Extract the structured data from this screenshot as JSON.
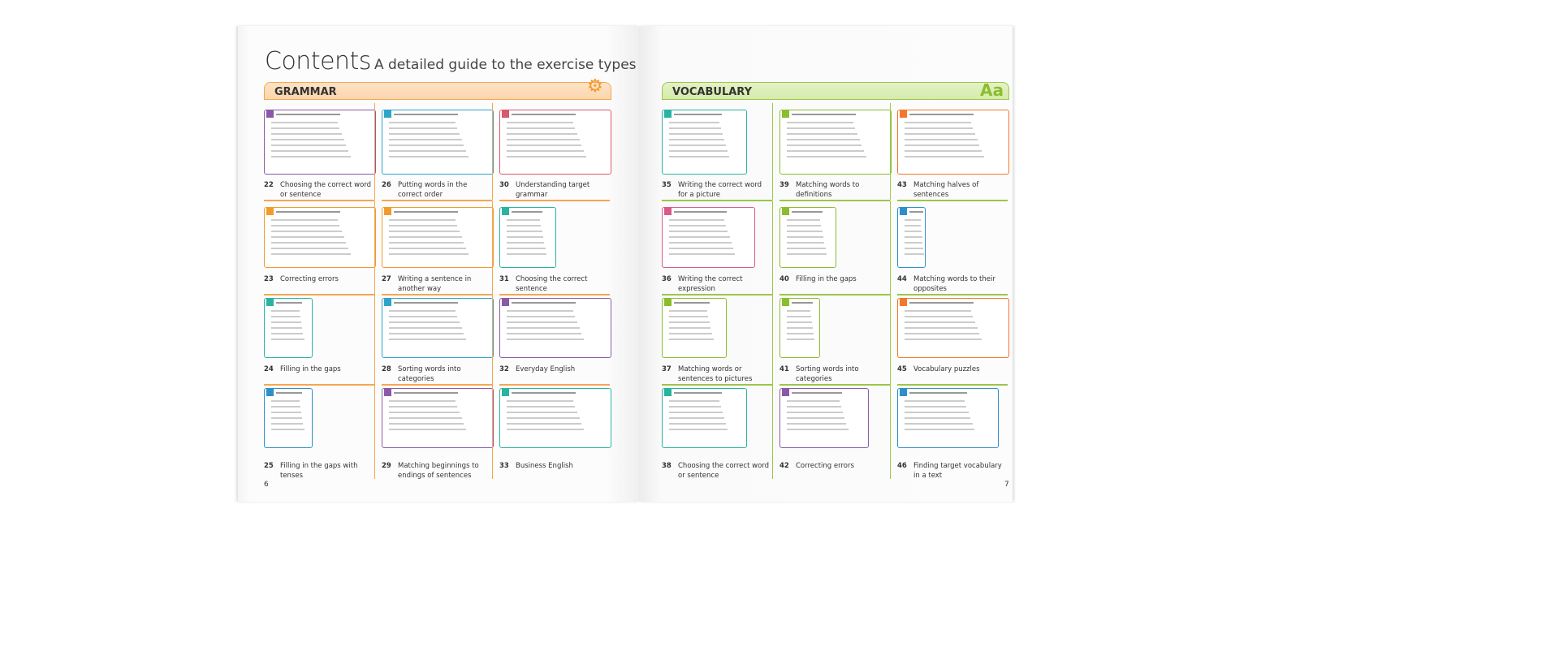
{
  "header": {
    "title": "Contents",
    "subtitle": "A detailed guide to the exercise types"
  },
  "sections": {
    "grammar": {
      "label": "GRAMMAR",
      "color": "#f4a653",
      "icon": "gears-icon"
    },
    "vocabulary": {
      "label": "VOCABULARY",
      "color": "#9cc64a",
      "icon": "Aa"
    }
  },
  "page_numbers": {
    "left": "6",
    "right": "7"
  },
  "grammar_items": [
    {
      "num": "22",
      "label": "Choosing the correct word or sentence",
      "color": "#8a5aa8"
    },
    {
      "num": "26",
      "label": "Putting words in the correct order",
      "color": "#2fa3c9"
    },
    {
      "num": "30",
      "label": "Understanding target grammar",
      "color": "#d95a6a"
    },
    {
      "num": "23",
      "label": "Correcting errors",
      "color": "#f39a2c"
    },
    {
      "num": "27",
      "label": "Writing a sentence in another way",
      "color": "#f39a2c"
    },
    {
      "num": "31",
      "label": "Choosing the correct sentence",
      "color": "#2ab3a0"
    },
    {
      "num": "24",
      "label": "Filling in the gaps",
      "color": "#2ab3a0"
    },
    {
      "num": "28",
      "label": "Sorting words into categories",
      "color": "#2fa3c9"
    },
    {
      "num": "32",
      "label": "Everyday English",
      "color": "#8a5aa8"
    },
    {
      "num": "25",
      "label": "Filling in the gaps with tenses",
      "color": "#2f8fc9"
    },
    {
      "num": "29",
      "label": "Matching beginnings to endings of sentences",
      "color": "#8a5aa8"
    },
    {
      "num": "33",
      "label": "Business English",
      "color": "#2ab3a0"
    }
  ],
  "vocabulary_items": [
    {
      "num": "35",
      "label": "Writing the correct word for a picture",
      "color": "#2ab3a0"
    },
    {
      "num": "39",
      "label": "Matching words to definitions",
      "color": "#8cbd2e"
    },
    {
      "num": "43",
      "label": "Matching halves of sentences",
      "color": "#f3772c"
    },
    {
      "num": "36",
      "label": "Writing the correct expression",
      "color": "#d95a8a"
    },
    {
      "num": "40",
      "label": "Filling in the gaps",
      "color": "#8cbd2e"
    },
    {
      "num": "44",
      "label": "Matching words to their opposites",
      "color": "#2f8fc9"
    },
    {
      "num": "37",
      "label": "Matching words or sentences to pictures",
      "color": "#8cbd2e"
    },
    {
      "num": "41",
      "label": "Sorting words into categories",
      "color": "#8cbd2e"
    },
    {
      "num": "45",
      "label": "Vocabulary puzzles",
      "color": "#f3772c"
    },
    {
      "num": "38",
      "label": "Choosing the correct word or sentence",
      "color": "#2ab3a0"
    },
    {
      "num": "42",
      "label": "Correcting errors",
      "color": "#8a5aa8"
    },
    {
      "num": "46",
      "label": "Finding target vocabulary in a text",
      "color": "#2f8fc9"
    }
  ]
}
